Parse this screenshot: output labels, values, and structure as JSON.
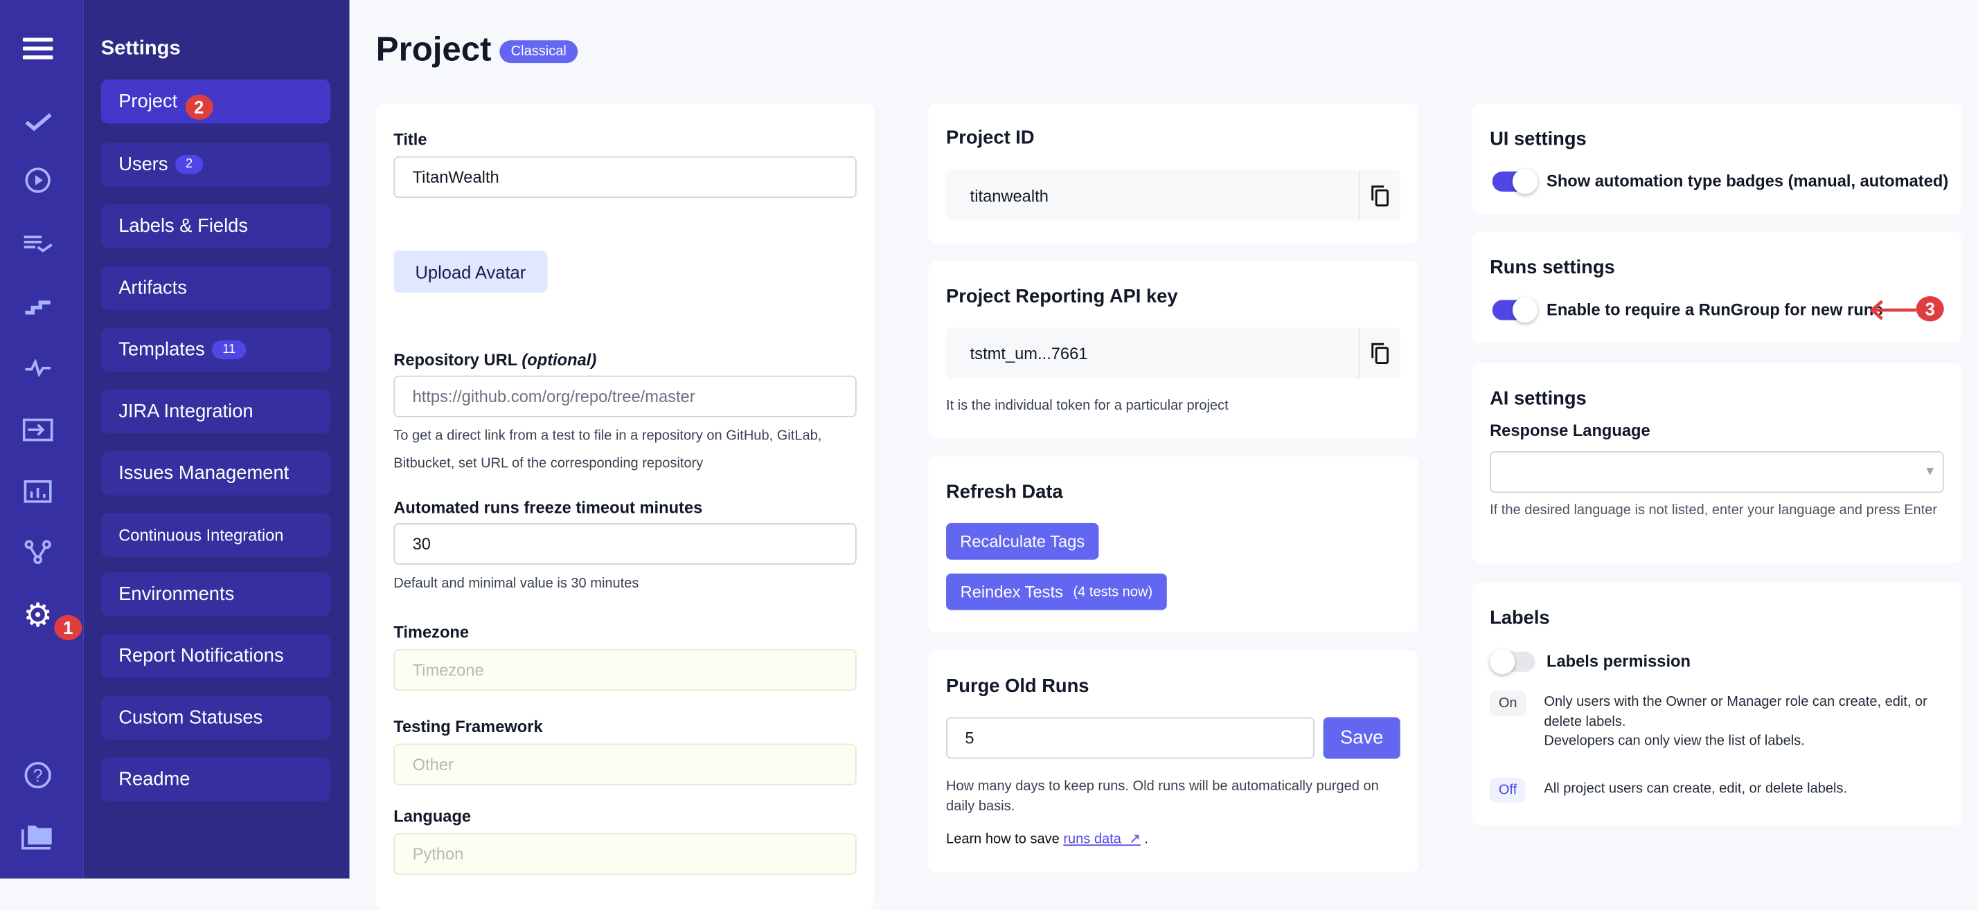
{
  "rail": {
    "icons": [
      "menu-icon",
      "check-icon",
      "play-circle-icon",
      "checklist-icon",
      "steps-icon",
      "pulse-icon",
      "import-icon",
      "chart-icon",
      "branch-icon",
      "gear-icon",
      "help-icon",
      "folder-icon"
    ],
    "gear_badge": "1"
  },
  "sidebar": {
    "title": "Settings",
    "items": [
      {
        "label": "Project",
        "badge": "2",
        "annotation": true
      },
      {
        "label": "Users",
        "badge": "2"
      },
      {
        "label": "Labels & Fields"
      },
      {
        "label": "Artifacts"
      },
      {
        "label": "Templates",
        "badge": "11"
      },
      {
        "label": "JIRA Integration"
      },
      {
        "label": "Issues Management"
      },
      {
        "label": "Continuous Integration"
      },
      {
        "label": "Environments"
      },
      {
        "label": "Report Notifications"
      },
      {
        "label": "Custom Statuses"
      },
      {
        "label": "Readme"
      }
    ]
  },
  "header": {
    "title": "Project",
    "badge": "Classical"
  },
  "project": {
    "title_label": "Title",
    "title_value": "TitanWealth",
    "upload_avatar": "Upload Avatar",
    "repo_label": "Repository URL",
    "repo_optional": "(optional)",
    "repo_placeholder": "https://github.com/org/repo/tree/master",
    "repo_help_1": "To get a direct link from a test to file in a repository on GitHub, GitLab,",
    "repo_help_2": "Bitbucket, set URL of the corresponding repository",
    "freeze_label": "Automated runs freeze timeout minutes",
    "freeze_value": "30",
    "freeze_help": "Default and minimal value is 30 minutes",
    "timezone_label": "Timezone",
    "timezone_placeholder": "Timezone",
    "framework_label": "Testing Framework",
    "framework_placeholder": "Other",
    "language_label": "Language",
    "language_placeholder": "Python"
  },
  "project_id": {
    "title": "Project ID",
    "value": "titanwealth"
  },
  "api_key": {
    "title": "Project Reporting API key",
    "value": "tstmt_um...7661",
    "help": "It is the individual token for a particular project"
  },
  "refresh": {
    "title": "Refresh Data",
    "recalc": "Recalculate Tags",
    "reindex": "Reindex Tests",
    "reindex_note": "(4 tests now)"
  },
  "purge": {
    "title": "Purge Old Runs",
    "value": "5",
    "save": "Save",
    "help": "How many days to keep runs. Old runs will be automatically purged on daily basis.",
    "learn": "Learn how to save",
    "link": "runs data",
    "link_icon": "↗",
    "period": "."
  },
  "ui_settings": {
    "title": "UI settings",
    "toggle_label": "Show automation type badges (manual, automated)",
    "enabled": true
  },
  "runs_settings": {
    "title": "Runs settings",
    "toggle_label": "Enable to require a RunGroup for new runs",
    "enabled": true,
    "annotation": "3"
  },
  "ai_settings": {
    "title": "AI settings",
    "lang_label": "Response Language",
    "lang_value": "",
    "help": "If the desired language is not listed, enter your language and press Enter"
  },
  "labels": {
    "title": "Labels",
    "toggle_label": "Labels permission",
    "enabled": false,
    "on_tag": "On",
    "on_desc_1": "Only users with the Owner or Manager role can create, edit, or delete labels.",
    "on_desc_2": "Developers can only view the list of labels.",
    "off_tag": "Off",
    "off_desc": "All project users can create, edit, or delete labels."
  },
  "colors": {
    "accent": "#6366f1",
    "rail": "#3730a3",
    "panel": "#2e2a85",
    "annotation": "#e03e3e"
  }
}
